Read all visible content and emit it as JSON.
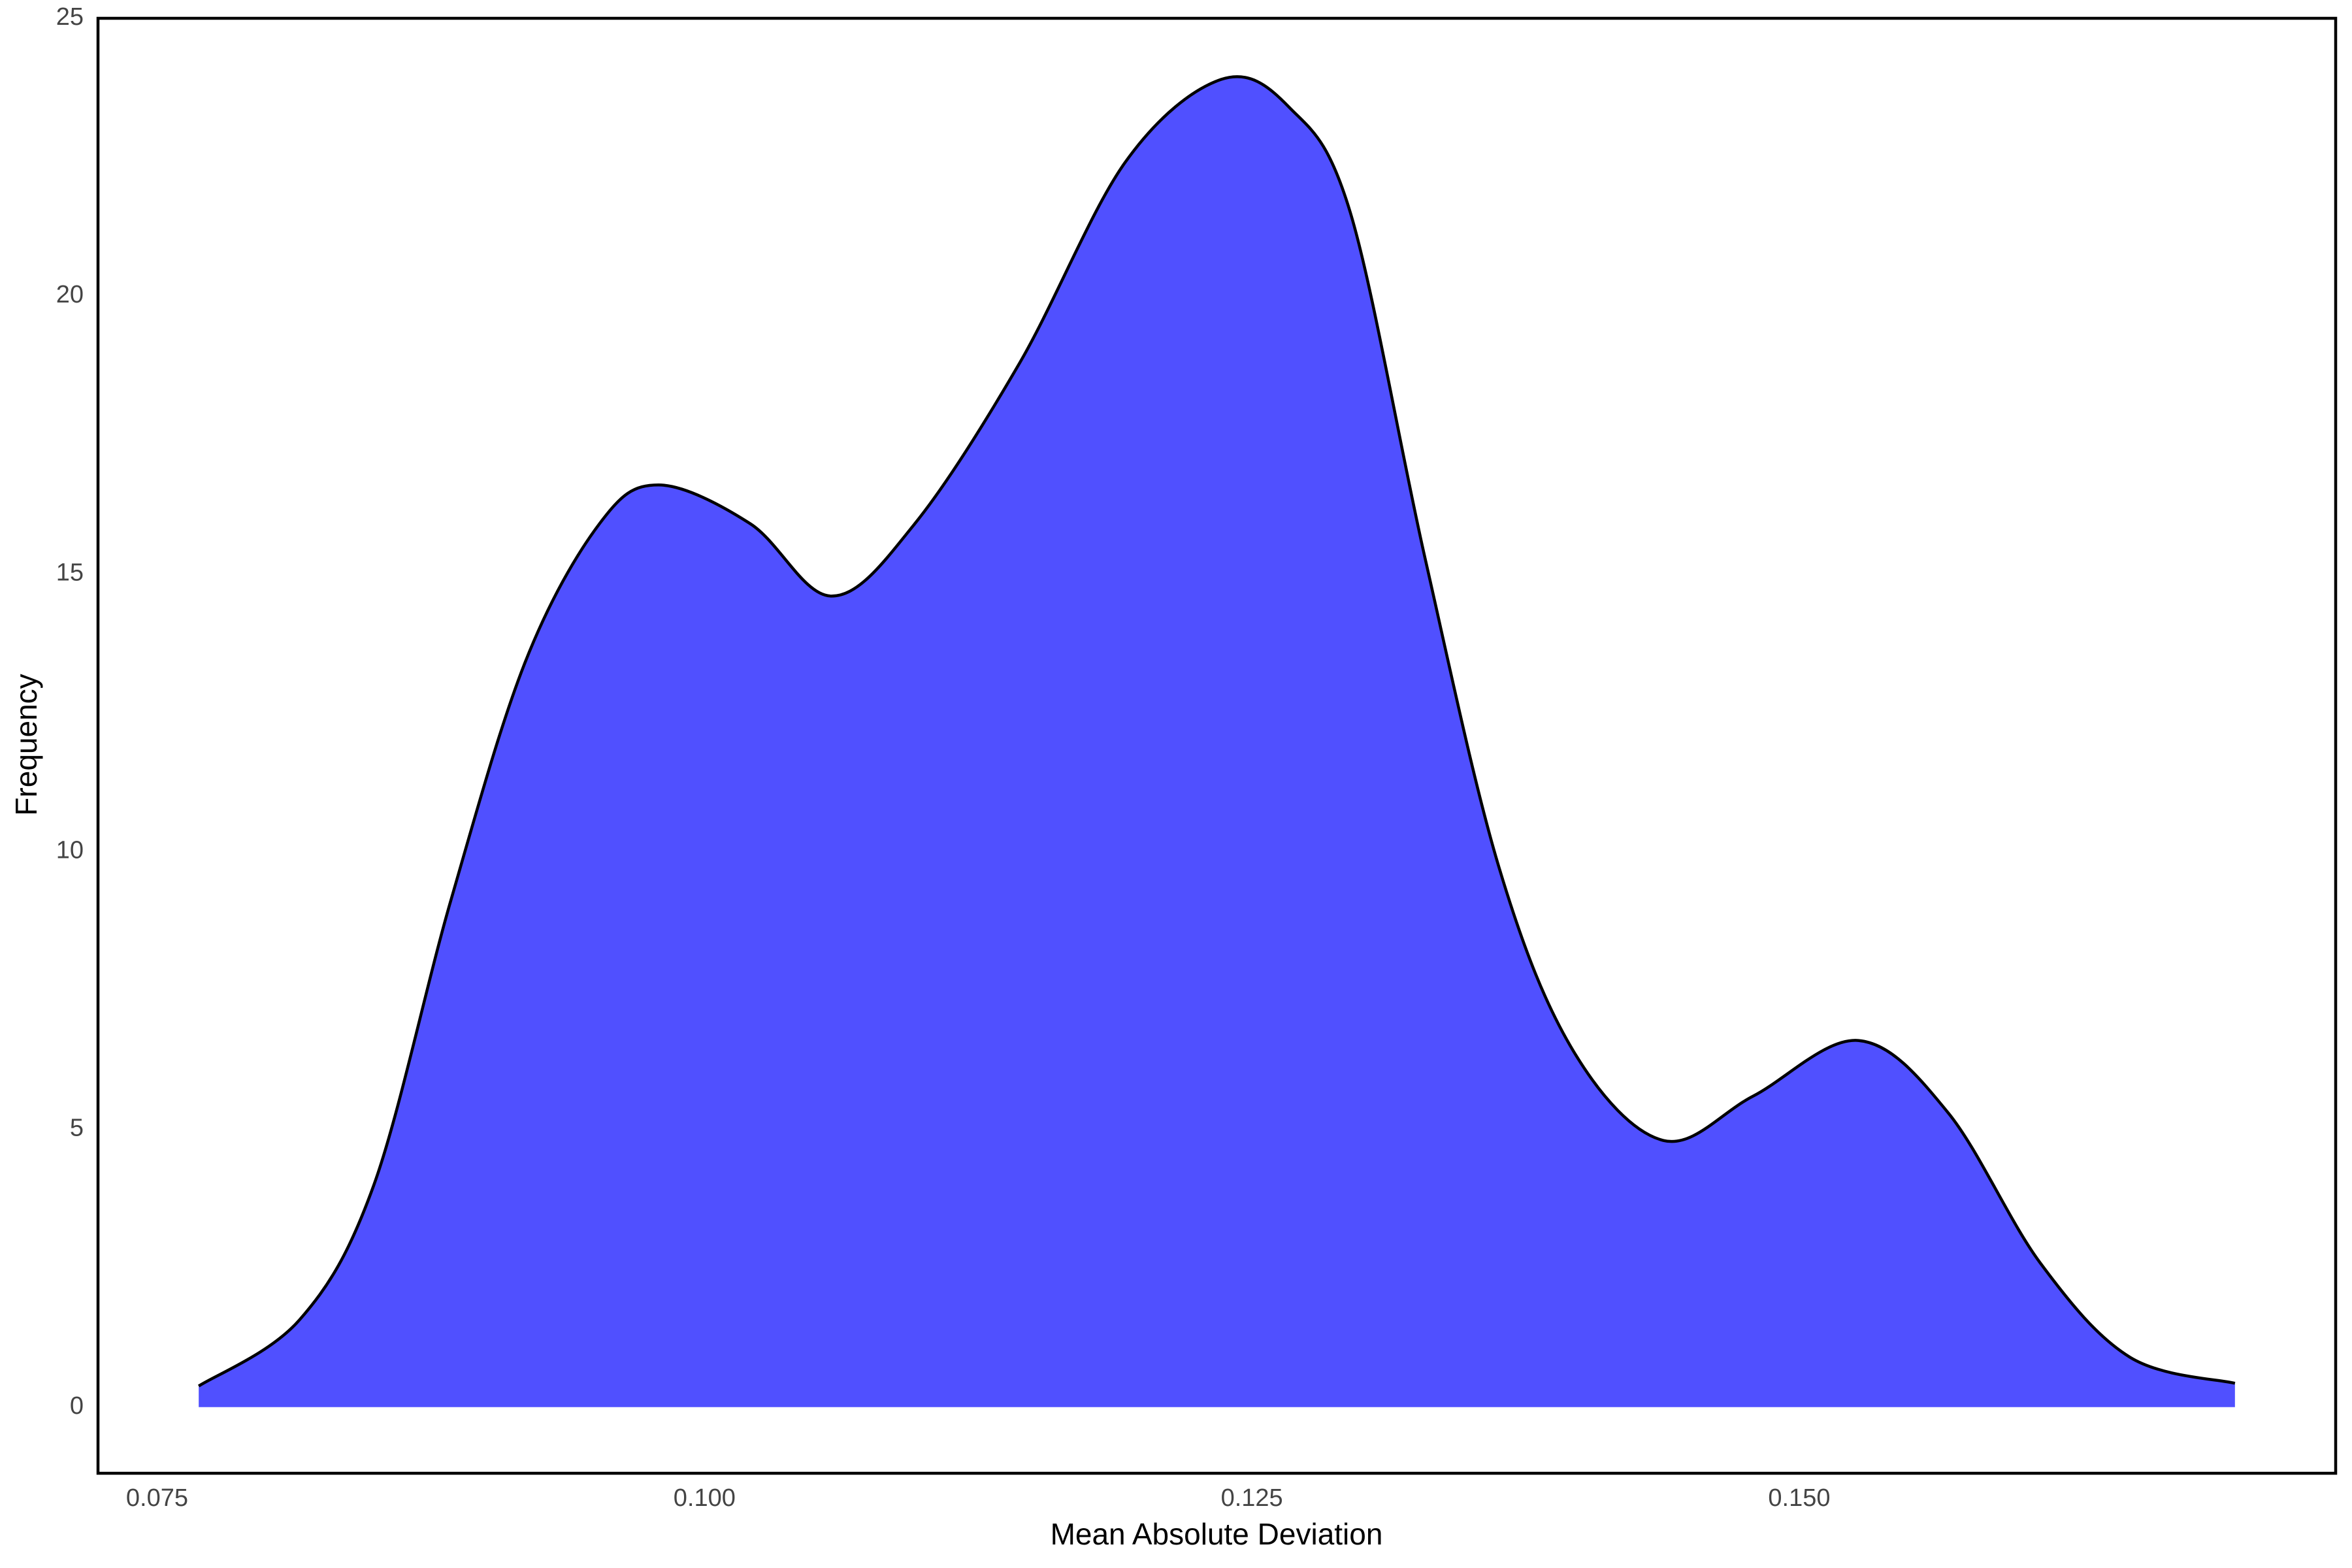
{
  "chart_data": {
    "type": "area",
    "x_label": "Mean Absolute Deviation",
    "y_label": "Frequency",
    "series": [
      {
        "color": "#5050ff",
        "x": [
          0.0769,
          0.0815,
          0.0849,
          0.0884,
          0.0918,
          0.0952,
          0.0979,
          0.1021,
          0.1058,
          0.1096,
          0.1144,
          0.1192,
          0.1236,
          0.1267,
          0.1295,
          0.1329,
          0.1363,
          0.1397,
          0.1438,
          0.1479,
          0.1527,
          0.1568,
          0.161,
          0.1651,
          0.1699
        ],
        "values": [
          0.38,
          1.57,
          4.0,
          9.1,
          13.4,
          15.9,
          16.6,
          15.9,
          14.6,
          15.9,
          18.8,
          22.4,
          23.9,
          23.4,
          21.5,
          15.3,
          9.7,
          6.4,
          4.8,
          5.6,
          6.6,
          5.3,
          2.6,
          0.9,
          0.43
        ]
      }
    ],
    "xlim": [
      0.0723,
      0.1745
    ],
    "ylim": [
      -1.19,
      25
    ],
    "xticks": [
      0.075,
      {
        "value": 0.1,
        "label": "0.100"
      },
      0.125,
      {
        "value": 0.15,
        "label": "0.150"
      }
    ],
    "yticks": [
      0,
      5,
      10,
      15,
      20,
      25
    ],
    "grid": false
  }
}
